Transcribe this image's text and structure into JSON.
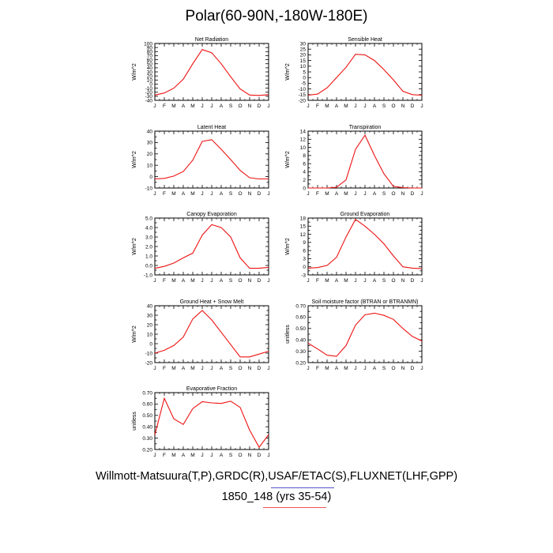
{
  "title": "Polar(60-90N,-180W-180E)",
  "footer": {
    "line1": "Willmott-Matsuura(T,P),GRDC(R),USAF/ETAC(S),FLUXNET(LHF,GPP)",
    "line2": "1850_148 (yrs 35-54)"
  },
  "colors": {
    "line": "#ee1111",
    "axis": "#000000",
    "underline_blue": "#5555cc",
    "underline_red": "#ee5555"
  },
  "chart_data": [
    {
      "type": "line",
      "title": "Net Radiation",
      "ylabel": "W/m^2",
      "categories": [
        "J",
        "F",
        "M",
        "A",
        "M",
        "J",
        "J",
        "A",
        "S",
        "O",
        "N",
        "D",
        "J"
      ],
      "ylim": [
        -40,
        100
      ],
      "yticks": [
        -40,
        -30,
        -20,
        -10,
        0,
        10,
        20,
        30,
        40,
        50,
        60,
        70,
        80,
        90,
        100
      ],
      "ytick_labels": [
        "-40",
        "-30",
        "-20",
        "-10",
        "0",
        "10",
        "20",
        "30",
        "40",
        "50",
        "60",
        "70",
        "80",
        "90",
        "100"
      ],
      "series": [
        {
          "values": [
            -27,
            -22,
            -10,
            12,
            50,
            85,
            77,
            50,
            18,
            -12,
            -27,
            -28,
            -26
          ]
        }
      ]
    },
    {
      "type": "line",
      "title": "Sensible Heat",
      "ylabel": "W/m^2",
      "categories": [
        "J",
        "F",
        "M",
        "A",
        "M",
        "J",
        "J",
        "A",
        "S",
        "O",
        "N",
        "D",
        "J"
      ],
      "ylim": [
        -20,
        30
      ],
      "yticks": [
        -20,
        -15,
        -10,
        -5,
        0,
        5,
        10,
        15,
        20,
        25,
        30
      ],
      "ytick_labels": [
        "-20",
        "-15",
        "-10",
        "-5",
        "0",
        "5",
        "10",
        "15",
        "20",
        "25",
        "30"
      ],
      "series": [
        {
          "values": [
            -15.5,
            -14.5,
            -9,
            0,
            9,
            20.5,
            20,
            15,
            7,
            -2,
            -12,
            -15,
            -15.5
          ]
        }
      ]
    },
    {
      "type": "line",
      "title": "Latent Heat",
      "ylabel": "W/m^2",
      "categories": [
        "J",
        "F",
        "M",
        "A",
        "M",
        "J",
        "J",
        "A",
        "S",
        "O",
        "N",
        "D",
        "J"
      ],
      "ylim": [
        -10,
        40
      ],
      "yticks": [
        -10,
        -5,
        0,
        5,
        10,
        15,
        20,
        25,
        30,
        35,
        40
      ],
      "ytick_labels": [
        "-10",
        "",
        "0",
        "",
        "10",
        "",
        "20",
        "",
        "30",
        "",
        "40"
      ],
      "series": [
        {
          "values": [
            -2,
            -1.5,
            0.5,
            4.5,
            14.5,
            31,
            32.5,
            24,
            15,
            5.5,
            -1,
            -2,
            -2
          ]
        }
      ]
    },
    {
      "type": "line",
      "title": "Transpiration",
      "ylabel": "W/m^2",
      "categories": [
        "J",
        "F",
        "M",
        "A",
        "M",
        "J",
        "J",
        "A",
        "S",
        "O",
        "N",
        "D",
        "J"
      ],
      "ylim": [
        0,
        14
      ],
      "yticks": [
        0,
        1,
        2,
        3,
        4,
        5,
        6,
        7,
        8,
        9,
        10,
        11,
        12,
        13,
        14
      ],
      "ytick_labels": [
        "0",
        "",
        "2",
        "",
        "4",
        "",
        "6",
        "",
        "8",
        "",
        "10",
        "",
        "12",
        "",
        "14"
      ],
      "series": [
        {
          "values": [
            0,
            0,
            0,
            0.2,
            2,
            9.5,
            13,
            8,
            3.5,
            0.4,
            0.1,
            0,
            0
          ]
        }
      ]
    },
    {
      "type": "line",
      "title": "Canopy Evaporation",
      "ylabel": "W/m^2",
      "categories": [
        "J",
        "F",
        "M",
        "A",
        "M",
        "J",
        "J",
        "A",
        "S",
        "O",
        "N",
        "D",
        "J"
      ],
      "ylim": [
        -1,
        5
      ],
      "yticks": [
        -1,
        -0.5,
        0,
        0.5,
        1,
        1.5,
        2,
        2.5,
        3,
        3.5,
        4,
        4.5,
        5
      ],
      "ytick_labels": [
        "-1.0",
        "",
        "0.0",
        "",
        "1.0",
        "",
        "2.0",
        "",
        "3.0",
        "",
        "4.0",
        "",
        "5.0"
      ],
      "series": [
        {
          "values": [
            -0.3,
            -0.1,
            0.25,
            0.8,
            1.3,
            3.2,
            4.3,
            4.0,
            3.0,
            0.8,
            -0.3,
            -0.3,
            -0.2
          ]
        }
      ]
    },
    {
      "type": "line",
      "title": "Ground Evaporation",
      "ylabel": "W/m^2",
      "categories": [
        "J",
        "F",
        "M",
        "A",
        "M",
        "J",
        "J",
        "A",
        "S",
        "O",
        "N",
        "D",
        "J"
      ],
      "ylim": [
        -3,
        18
      ],
      "yticks": [
        -3,
        -1.5,
        0,
        1.5,
        3,
        4.5,
        6,
        7.5,
        9,
        10.5,
        12,
        13.5,
        15,
        16.5,
        18
      ],
      "ytick_labels": [
        "-3",
        "",
        "0",
        "",
        "3",
        "",
        "6",
        "",
        "9",
        "",
        "12",
        "",
        "15",
        "",
        "18"
      ],
      "series": [
        {
          "values": [
            -0.5,
            -0.3,
            0.5,
            3.5,
            11,
            17.5,
            15,
            12,
            8.5,
            4,
            0,
            -0.5,
            -0.7
          ]
        }
      ]
    },
    {
      "type": "line",
      "title": "Ground Heat + Snow Melt",
      "ylabel": "W/m^2",
      "categories": [
        "J",
        "F",
        "M",
        "A",
        "M",
        "J",
        "J",
        "A",
        "S",
        "O",
        "N",
        "D",
        "J"
      ],
      "ylim": [
        -20,
        40
      ],
      "yticks": [
        -20,
        -15,
        -10,
        -5,
        0,
        5,
        10,
        15,
        20,
        25,
        30,
        35,
        40
      ],
      "ytick_labels": [
        "-20",
        "",
        "-10",
        "",
        "0",
        "",
        "10",
        "",
        "20",
        "",
        "30",
        "",
        "40"
      ],
      "series": [
        {
          "values": [
            -10,
            -7,
            -2,
            7,
            26,
            35,
            25,
            12,
            -1,
            -14,
            -14,
            -11,
            -8
          ]
        }
      ]
    },
    {
      "type": "line",
      "title": "Soil moisture factor (BTRAN or BTRANMN)",
      "ylabel": "unitless",
      "categories": [
        "J",
        "F",
        "M",
        "A",
        "M",
        "J",
        "J",
        "A",
        "S",
        "O",
        "N",
        "D",
        "J"
      ],
      "ylim": [
        0.2,
        0.7
      ],
      "yticks": [
        0.2,
        0.25,
        0.3,
        0.35,
        0.4,
        0.45,
        0.5,
        0.55,
        0.6,
        0.65,
        0.7
      ],
      "ytick_labels": [
        "0.20",
        "",
        "0.30",
        "",
        "0.40",
        "",
        "0.50",
        "",
        "0.60",
        "",
        "0.70"
      ],
      "series": [
        {
          "values": [
            0.37,
            0.32,
            0.265,
            0.255,
            0.35,
            0.53,
            0.62,
            0.635,
            0.615,
            0.58,
            0.5,
            0.43,
            0.39
          ]
        }
      ]
    },
    {
      "type": "line",
      "title": "Evaporative Fraction",
      "ylabel": "unitless",
      "categories": [
        "J",
        "F",
        "M",
        "A",
        "M",
        "J",
        "J",
        "A",
        "S",
        "O",
        "N",
        "D",
        "J"
      ],
      "ylim": [
        0.2,
        0.7
      ],
      "yticks": [
        0.2,
        0.25,
        0.3,
        0.35,
        0.4,
        0.45,
        0.5,
        0.55,
        0.6,
        0.65,
        0.7
      ],
      "ytick_labels": [
        "0.20",
        "",
        "0.30",
        "",
        "0.40",
        "",
        "0.50",
        "",
        "0.60",
        "",
        "0.70"
      ],
      "series": [
        {
          "values": [
            0.33,
            0.65,
            0.47,
            0.42,
            0.56,
            0.62,
            0.61,
            0.605,
            0.625,
            0.57,
            0.37,
            0.22,
            0.33
          ]
        }
      ]
    }
  ]
}
